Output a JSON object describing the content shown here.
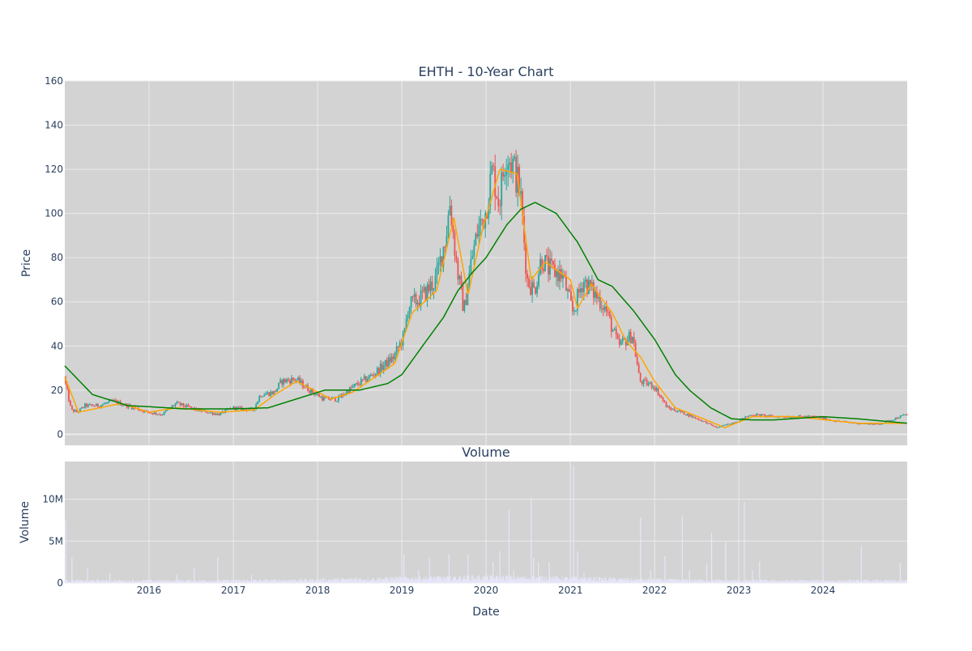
{
  "chart_data": [
    {
      "type": "candlestick",
      "title": "EHTH - 10-Year Chart",
      "xlabel": "",
      "ylabel": "Price",
      "ylim": [
        -5,
        160
      ],
      "yticks": [
        0,
        20,
        40,
        60,
        80,
        100,
        120,
        140,
        160
      ],
      "grid": true,
      "colors": {
        "increasing": "#26a69a",
        "decreasing": "#ef5350",
        "ma_short": "#ffa500",
        "ma_long": "#008000"
      },
      "price_path": [
        [
          "2015-01-01",
          26
        ],
        [
          "2015-02-01",
          11
        ],
        [
          "2015-03-01",
          10
        ],
        [
          "2015-04-01",
          13
        ],
        [
          "2015-06-01",
          13
        ],
        [
          "2015-08-01",
          15
        ],
        [
          "2015-10-01",
          13
        ],
        [
          "2016-01-01",
          10
        ],
        [
          "2016-03-01",
          9
        ],
        [
          "2016-05-01",
          14
        ],
        [
          "2016-08-01",
          11
        ],
        [
          "2016-11-01",
          9
        ],
        [
          "2017-01-01",
          12
        ],
        [
          "2017-04-01",
          11
        ],
        [
          "2017-05-01",
          18
        ],
        [
          "2017-07-01",
          19
        ],
        [
          "2017-08-01",
          24
        ],
        [
          "2017-10-01",
          25
        ],
        [
          "2017-12-01",
          20
        ],
        [
          "2018-02-01",
          16
        ],
        [
          "2018-04-01",
          16
        ],
        [
          "2018-06-01",
          21
        ],
        [
          "2018-09-01",
          27
        ],
        [
          "2018-12-01",
          35
        ],
        [
          "2019-01-15",
          45
        ],
        [
          "2019-02-01",
          58
        ],
        [
          "2019-04-01",
          62
        ],
        [
          "2019-06-01",
          70
        ],
        [
          "2019-07-15",
          90
        ],
        [
          "2019-08-01",
          105
        ],
        [
          "2019-09-01",
          75
        ],
        [
          "2019-10-01",
          56
        ],
        [
          "2019-11-01",
          78
        ],
        [
          "2019-12-01",
          93
        ],
        [
          "2020-01-01",
          100
        ],
        [
          "2020-02-01",
          120
        ],
        [
          "2020-03-01",
          105
        ],
        [
          "2020-04-01",
          128
        ],
        [
          "2020-05-01",
          122
        ],
        [
          "2020-06-01",
          110
        ],
        [
          "2020-07-01",
          70
        ],
        [
          "2020-08-01",
          65
        ],
        [
          "2020-09-01",
          80
        ],
        [
          "2020-10-01",
          75
        ],
        [
          "2020-12-01",
          72
        ],
        [
          "2021-01-15",
          55
        ],
        [
          "2021-03-01",
          70
        ],
        [
          "2021-04-01",
          66
        ],
        [
          "2021-06-01",
          58
        ],
        [
          "2021-08-01",
          40
        ],
        [
          "2021-10-01",
          45
        ],
        [
          "2021-11-01",
          24
        ],
        [
          "2022-01-01",
          22
        ],
        [
          "2022-03-01",
          12
        ],
        [
          "2022-05-01",
          10
        ],
        [
          "2022-08-01",
          6
        ],
        [
          "2022-10-01",
          3
        ],
        [
          "2023-01-01",
          6
        ],
        [
          "2023-03-01",
          9
        ],
        [
          "2023-06-01",
          8
        ],
        [
          "2023-09-01",
          8
        ],
        [
          "2023-12-01",
          8
        ],
        [
          "2024-03-01",
          6
        ],
        [
          "2024-06-01",
          5
        ],
        [
          "2024-09-01",
          4.5
        ],
        [
          "2024-12-31",
          9
        ]
      ],
      "ma_short_path": [
        [
          "2015-01-01",
          26
        ],
        [
          "2015-03-01",
          10
        ],
        [
          "2015-06-01",
          12
        ],
        [
          "2015-09-01",
          14
        ],
        [
          "2016-01-01",
          10
        ],
        [
          "2016-05-01",
          12
        ],
        [
          "2016-11-01",
          10
        ],
        [
          "2017-04-01",
          11
        ],
        [
          "2017-07-01",
          18
        ],
        [
          "2017-10-01",
          24
        ],
        [
          "2018-03-01",
          16
        ],
        [
          "2018-06-01",
          19
        ],
        [
          "2018-12-01",
          32
        ],
        [
          "2019-02-15",
          55
        ],
        [
          "2019-06-01",
          65
        ],
        [
          "2019-08-15",
          98
        ],
        [
          "2019-10-15",
          63
        ],
        [
          "2019-12-15",
          92
        ],
        [
          "2020-03-01",
          120
        ],
        [
          "2020-05-15",
          118
        ],
        [
          "2020-07-15",
          70
        ],
        [
          "2020-09-15",
          78
        ],
        [
          "2021-01-01",
          70
        ],
        [
          "2021-02-01",
          57
        ],
        [
          "2021-04-01",
          68
        ],
        [
          "2021-07-01",
          55
        ],
        [
          "2021-09-01",
          42
        ],
        [
          "2021-11-01",
          35
        ],
        [
          "2022-01-01",
          24
        ],
        [
          "2022-04-01",
          12
        ],
        [
          "2022-08-01",
          7
        ],
        [
          "2022-11-01",
          3
        ],
        [
          "2023-03-01",
          8
        ],
        [
          "2023-09-01",
          8
        ],
        [
          "2024-06-01",
          5
        ],
        [
          "2024-12-31",
          5
        ]
      ],
      "ma_long_path": [
        [
          "2015-01-01",
          31
        ],
        [
          "2015-05-01",
          18
        ],
        [
          "2015-10-01",
          13
        ],
        [
          "2016-01-01",
          12.5
        ],
        [
          "2016-06-01",
          11.5
        ],
        [
          "2017-01-01",
          11.5
        ],
        [
          "2017-06-01",
          12
        ],
        [
          "2017-11-01",
          17
        ],
        [
          "2018-02-01",
          20
        ],
        [
          "2018-07-01",
          20
        ],
        [
          "2018-11-01",
          23
        ],
        [
          "2019-01-01",
          27
        ],
        [
          "2019-04-01",
          40
        ],
        [
          "2019-07-01",
          53
        ],
        [
          "2019-09-01",
          65
        ],
        [
          "2019-11-01",
          73
        ],
        [
          "2020-01-01",
          80
        ],
        [
          "2020-04-01",
          95
        ],
        [
          "2020-06-01",
          102
        ],
        [
          "2020-08-01",
          105
        ],
        [
          "2020-11-01",
          100
        ],
        [
          "2021-02-01",
          87
        ],
        [
          "2021-05-01",
          70
        ],
        [
          "2021-07-01",
          67
        ],
        [
          "2021-10-01",
          56
        ],
        [
          "2022-01-01",
          43
        ],
        [
          "2022-04-01",
          27
        ],
        [
          "2022-06-01",
          20
        ],
        [
          "2022-09-01",
          12
        ],
        [
          "2022-12-01",
          7
        ],
        [
          "2023-03-01",
          6.5
        ],
        [
          "2023-06-01",
          6.5
        ],
        [
          "2024-01-01",
          8
        ],
        [
          "2024-06-01",
          7
        ],
        [
          "2024-12-31",
          5
        ]
      ]
    },
    {
      "type": "bar",
      "title": "Volume",
      "xlabel": "Date",
      "ylabel": "Volume",
      "ylim": [
        0,
        14500000
      ],
      "yticks": [
        0,
        5000000,
        10000000
      ],
      "ytick_labels": [
        "0",
        "5M",
        "10M"
      ],
      "xticks": [
        "2016-01-01",
        "2017-01-01",
        "2018-01-01",
        "2019-01-01",
        "2020-01-01",
        "2021-01-01",
        "2022-01-01",
        "2023-01-01",
        "2024-01-01"
      ],
      "xtick_labels": [
        "2016",
        "2017",
        "2018",
        "2019",
        "2020",
        "2021",
        "2022",
        "2023",
        "2024"
      ],
      "x_range": [
        "2015-01-01",
        "2024-12-31"
      ],
      "color": "#e6e6fa",
      "spikes": [
        [
          "2015-01-05",
          7500000
        ],
        [
          "2015-02-01",
          3000000
        ],
        [
          "2015-04-10",
          1800000
        ],
        [
          "2015-07-15",
          1200000
        ],
        [
          "2016-05-01",
          1000000
        ],
        [
          "2016-07-15",
          1800000
        ],
        [
          "2016-10-25",
          3100000
        ],
        [
          "2017-03-20",
          1000000
        ],
        [
          "2018-06-15",
          700000
        ],
        [
          "2019-01-10",
          3400000
        ],
        [
          "2019-03-15",
          1500000
        ],
        [
          "2019-05-01",
          3100000
        ],
        [
          "2019-07-25",
          3400000
        ],
        [
          "2019-10-15",
          3400000
        ],
        [
          "2020-01-01",
          4800000
        ],
        [
          "2020-02-01",
          2500000
        ],
        [
          "2020-03-01",
          3800000
        ],
        [
          "2020-04-10",
          8800000
        ],
        [
          "2020-05-01",
          1500000
        ],
        [
          "2020-07-15",
          10200000
        ],
        [
          "2020-07-25",
          3000000
        ],
        [
          "2020-08-15",
          2500000
        ],
        [
          "2020-10-01",
          2500000
        ],
        [
          "2021-01-15",
          14000000
        ],
        [
          "2021-02-01",
          3800000
        ],
        [
          "2021-03-01",
          1200000
        ],
        [
          "2021-11-01",
          7800000
        ],
        [
          "2021-12-15",
          1500000
        ],
        [
          "2022-02-15",
          3200000
        ],
        [
          "2022-05-01",
          8000000
        ],
        [
          "2022-06-01",
          1500000
        ],
        [
          "2022-08-15",
          2200000
        ],
        [
          "2022-09-05",
          6000000
        ],
        [
          "2022-11-05",
          4900000
        ],
        [
          "2023-01-25",
          9700000
        ],
        [
          "2023-03-01",
          1500000
        ],
        [
          "2023-04-01",
          2600000
        ],
        [
          "2024-01-01",
          2000000
        ],
        [
          "2024-06-15",
          4400000
        ],
        [
          "2024-12-01",
          2400000
        ]
      ]
    }
  ]
}
